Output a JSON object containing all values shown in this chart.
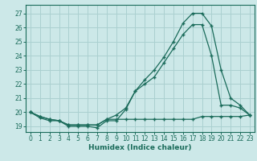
{
  "xlabel": "Humidex (Indice chaleur)",
  "xlim": [
    -0.5,
    23.5
  ],
  "ylim": [
    18.6,
    27.6
  ],
  "xticks": [
    0,
    1,
    2,
    3,
    4,
    5,
    6,
    7,
    8,
    9,
    10,
    11,
    12,
    13,
    14,
    15,
    16,
    17,
    18,
    19,
    20,
    21,
    22,
    23
  ],
  "yticks": [
    19,
    20,
    21,
    22,
    23,
    24,
    25,
    26,
    27
  ],
  "background_color": "#cce8e8",
  "grid_color": "#aad0d0",
  "line_color": "#1a6b5a",
  "line_top_x": [
    0,
    1,
    2,
    3,
    4,
    5,
    6,
    7,
    8,
    9,
    10,
    11,
    12,
    13,
    14,
    15,
    16,
    17,
    18,
    19,
    20,
    21,
    22,
    23
  ],
  "line_top_y": [
    20.0,
    19.6,
    19.4,
    19.4,
    19.1,
    19.1,
    19.1,
    19.1,
    19.5,
    19.8,
    20.3,
    21.5,
    22.3,
    23.0,
    23.9,
    25.0,
    26.3,
    27.0,
    27.0,
    26.1,
    23.0,
    21.0,
    20.5,
    19.8
  ],
  "line_mid_x": [
    0,
    1,
    2,
    3,
    4,
    5,
    6,
    7,
    8,
    9,
    10,
    11,
    12,
    13,
    14,
    15,
    16,
    17,
    18,
    19,
    20,
    21,
    22,
    23
  ],
  "line_mid_y": [
    20.0,
    19.7,
    19.5,
    19.4,
    19.0,
    19.0,
    19.0,
    18.9,
    19.4,
    19.4,
    20.2,
    21.5,
    22.0,
    22.5,
    23.5,
    24.5,
    25.5,
    26.2,
    26.2,
    24.0,
    20.5,
    20.5,
    20.3,
    19.8
  ],
  "line_bot_x": [
    0,
    1,
    2,
    3,
    4,
    5,
    6,
    7,
    8,
    9,
    10,
    11,
    12,
    13,
    14,
    15,
    16,
    17,
    18,
    19,
    20,
    21,
    22,
    23
  ],
  "line_bot_y": [
    20.0,
    19.7,
    19.5,
    19.4,
    19.1,
    19.1,
    19.1,
    19.1,
    19.5,
    19.5,
    19.5,
    19.5,
    19.5,
    19.5,
    19.5,
    19.5,
    19.5,
    19.5,
    19.7,
    19.7,
    19.7,
    19.7,
    19.7,
    19.8
  ]
}
